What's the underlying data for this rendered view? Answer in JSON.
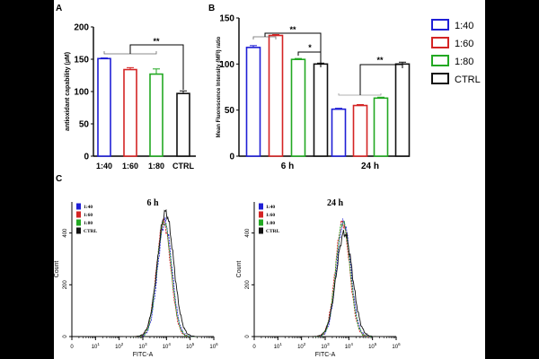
{
  "chart_data": [
    {
      "panel": "A",
      "type": "bar",
      "categories": [
        "1:40",
        "1:60",
        "1:80",
        "CTRL"
      ],
      "values": [
        151,
        134,
        127,
        97
      ],
      "errors": [
        1,
        3,
        8,
        4
      ],
      "ylabel": "antioxidant capability (µM)",
      "ylim": [
        0,
        200
      ],
      "yticks": [
        "0",
        "50",
        "100",
        "150",
        "200"
      ],
      "significance": [
        {
          "label": "**",
          "from": "1:40-1:80",
          "to": "CTRL"
        }
      ]
    },
    {
      "panel": "B",
      "type": "bar",
      "categories": [
        "6 h",
        "24 h"
      ],
      "series": [
        {
          "name": "1:40",
          "values": [
            118,
            51
          ],
          "errors": [
            2,
            1
          ]
        },
        {
          "name": "1:60",
          "values": [
            131,
            55
          ],
          "errors": [
            1,
            1
          ]
        },
        {
          "name": "1:80",
          "values": [
            105,
            63
          ],
          "errors": [
            1,
            1
          ]
        },
        {
          "name": "CTRL",
          "values": [
            100,
            100
          ],
          "errors": [
            1,
            2
          ]
        }
      ],
      "ylabel": "Mean Fluorescence Intensity (MFI) ratio",
      "ylim": [
        0,
        150
      ],
      "yticks": [
        "0",
        "50",
        "100",
        "150"
      ],
      "significance": [
        {
          "label": "**",
          "group": "6 h",
          "between": "1:40-1:60 vs CTRL"
        },
        {
          "label": "*",
          "group": "6 h",
          "between": "1:80 vs CTRL"
        },
        {
          "label": "**",
          "group": "24 h",
          "between": "1:40-1:80 vs CTRL"
        }
      ]
    },
    {
      "panel": "C",
      "type": "line",
      "subplots": [
        {
          "title": "6 h",
          "peak_log10": 3.9,
          "ymax": 480,
          "ctrl_peak": 480
        },
        {
          "title": "24 h",
          "peak_log10": 3.75,
          "ymax": 480,
          "ctrl_peak": 400
        }
      ],
      "series": [
        "1:40",
        "1:60",
        "1:80",
        "CTRL"
      ],
      "xlabel": "FITC-A",
      "ylabel": "Count",
      "xticks_log10": [
        0,
        1,
        2,
        3,
        4,
        5,
        6
      ],
      "yticks": [
        "0",
        "200",
        "400"
      ],
      "ylim": [
        0,
        520
      ]
    }
  ],
  "colors": {
    "1:40": "#1f1fd6",
    "1:60": "#d42424",
    "1:80": "#22a822",
    "CTRL": "#111111"
  },
  "labels": {
    "panel_a": "A",
    "panel_b": "B",
    "panel_c": "C"
  },
  "legend": [
    "1:40",
    "1:60",
    "1:80",
    "CTRL"
  ]
}
